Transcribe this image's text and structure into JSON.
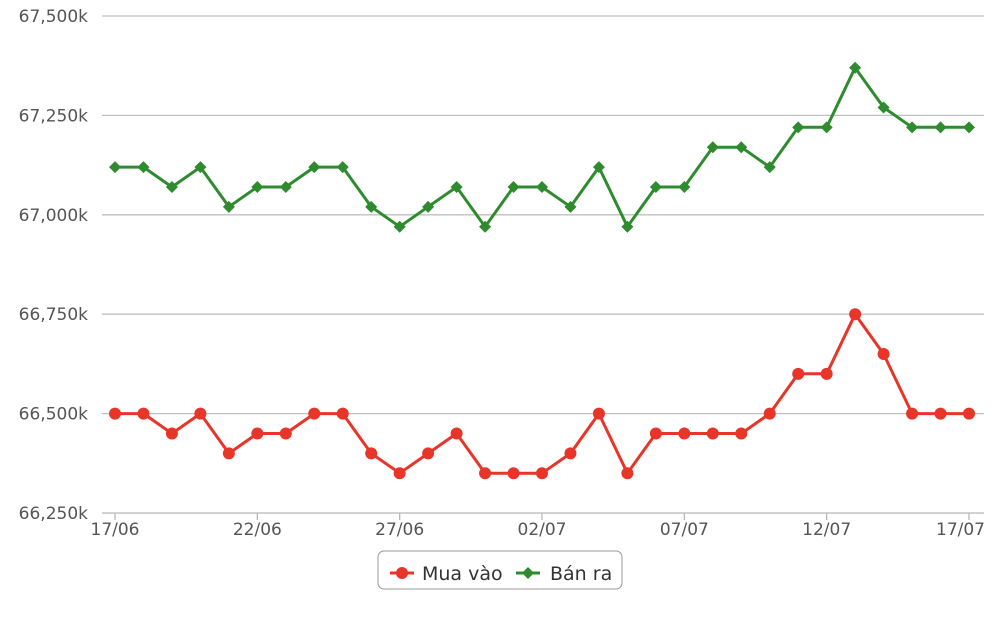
{
  "chart_data": {
    "type": "line",
    "title": "",
    "xlabel": "",
    "ylabel": "",
    "x": [
      "17/06",
      "18/06",
      "19/06",
      "20/06",
      "21/06",
      "22/06",
      "23/06",
      "24/06",
      "25/06",
      "26/06",
      "27/06",
      "28/06",
      "29/06",
      "30/06",
      "01/07",
      "02/07",
      "03/07",
      "04/07",
      "05/07",
      "06/07",
      "07/07",
      "08/07",
      "09/07",
      "10/07",
      "11/07",
      "12/07",
      "13/07",
      "14/07",
      "15/07",
      "16/07",
      "17/07"
    ],
    "x_tick_labels": [
      "17/06",
      "22/06",
      "27/06",
      "02/07",
      "07/07",
      "12/07",
      "17/07"
    ],
    "y_tick_labels": [
      "66,250k",
      "66,500k",
      "66,750k",
      "67,000k",
      "67,250k",
      "67,500k"
    ],
    "ylim": [
      66250,
      67500
    ],
    "grid": "horizontal",
    "legend_position": "bottom-center",
    "series": [
      {
        "name": "Mua vào",
        "color": "#e8352a",
        "marker": "circle",
        "values": [
          66500,
          66500,
          66450,
          66500,
          66400,
          66450,
          66450,
          66500,
          66500,
          66400,
          66350,
          66400,
          66450,
          66350,
          66350,
          66350,
          66400,
          66500,
          66350,
          66450,
          66450,
          66450,
          66450,
          66500,
          66600,
          66600,
          66750,
          66650,
          66500,
          66500,
          66500
        ]
      },
      {
        "name": "Bán ra",
        "color": "#2e8b2e",
        "marker": "diamond",
        "values": [
          67120,
          67120,
          67070,
          67120,
          67020,
          67070,
          67070,
          67120,
          67120,
          67020,
          66970,
          67020,
          67070,
          66970,
          67070,
          67070,
          67020,
          67120,
          66970,
          67070,
          67070,
          67170,
          67170,
          67120,
          67220,
          67220,
          67370,
          67270,
          67220,
          67220,
          67220
        ]
      }
    ]
  }
}
